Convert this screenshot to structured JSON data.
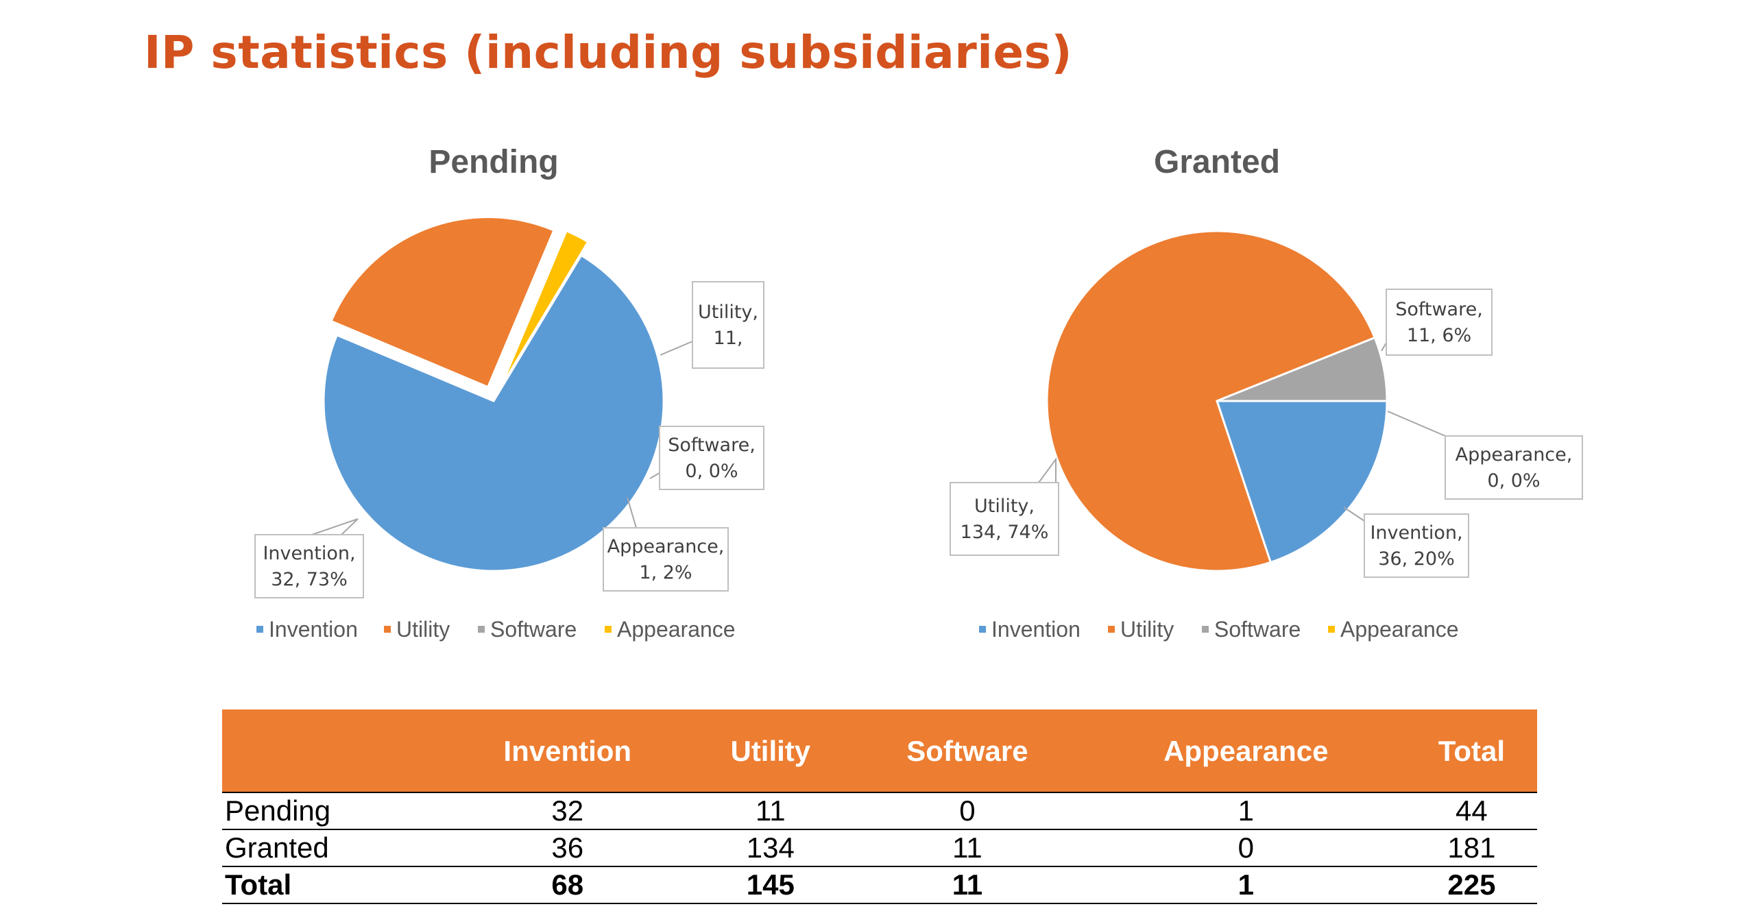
{
  "page": {
    "title": "IP statistics (including subsidiaries)"
  },
  "colors": {
    "Invention": "#5B9BD5",
    "Utility": "#ED7D31",
    "Software": "#A5A5A5",
    "Appearance": "#FFC000",
    "title": "#D4521E"
  },
  "chart_data": [
    {
      "type": "pie",
      "title": "Pending",
      "categories": [
        "Invention",
        "Utility",
        "Software",
        "Appearance"
      ],
      "values": [
        32,
        11,
        0,
        1
      ],
      "data_labels": [
        [
          "Invention,",
          "32, 73%"
        ],
        [
          "Utility,",
          "11,"
        ],
        [
          "Software,",
          "0, 0%"
        ],
        [
          "Appearance,",
          "1, 2%"
        ]
      ],
      "exploded": true,
      "legend": [
        "Invention",
        "Utility",
        "Software",
        "Appearance"
      ],
      "legend_position": "bottom"
    },
    {
      "type": "pie",
      "title": "Granted",
      "categories": [
        "Invention",
        "Utility",
        "Software",
        "Appearance"
      ],
      "values": [
        36,
        134,
        11,
        0
      ],
      "data_labels": [
        [
          "Invention,",
          "36, 20%"
        ],
        [
          "Utility,",
          "134, 74%"
        ],
        [
          "Software,",
          "11, 6%"
        ],
        [
          "Appearance,",
          "0, 0%"
        ]
      ],
      "exploded": false,
      "legend": [
        "Invention",
        "Utility",
        "Software",
        "Appearance"
      ],
      "legend_position": "bottom"
    }
  ],
  "table": {
    "headers": [
      "",
      "Invention",
      "Utility",
      "Software",
      "Appearance",
      "Total"
    ],
    "rows": [
      [
        "Pending",
        "32",
        "11",
        "0",
        "1",
        "44"
      ],
      [
        "Granted",
        "36",
        "134",
        "11",
        "0",
        "181"
      ]
    ],
    "total": [
      "Total",
      "68",
      "145",
      "11",
      "1",
      "225"
    ]
  }
}
